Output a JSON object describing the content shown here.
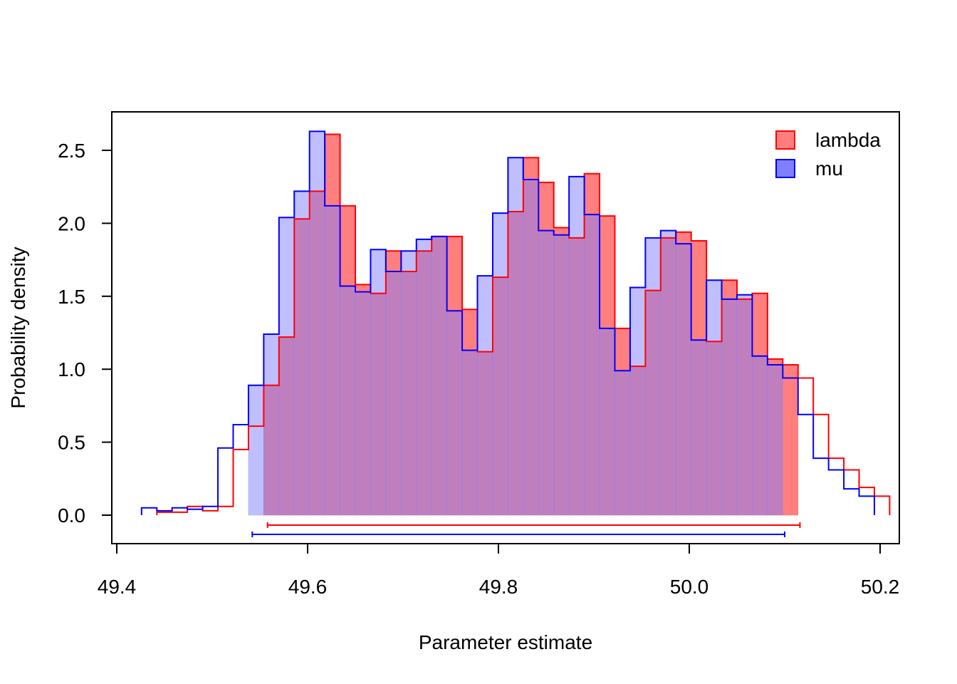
{
  "chart_data": {
    "type": "histogram",
    "title": "",
    "xlabel": "Parameter estimate",
    "ylabel": "Probability density",
    "xlim": [
      49.4,
      50.2
    ],
    "ylim": [
      0.0,
      2.5
    ],
    "x_ticks": [
      "49.4",
      "49.6",
      "49.8",
      "50.0",
      "50.2"
    ],
    "y_ticks": [
      "0.0",
      "0.5",
      "1.0",
      "1.5",
      "2.0",
      "2.5"
    ],
    "legend_position": "top-right",
    "series": [
      {
        "name": "lambda",
        "line_color": "#ff0000",
        "fill_color": "#ff7f7f",
        "bin_start": 49.442,
        "bin_width": 0.016,
        "densities": [
          0.02,
          0.02,
          0.06,
          0.03,
          0.06,
          0.45,
          0.61,
          0.89,
          1.22,
          2.03,
          2.22,
          2.61,
          2.12,
          1.58,
          1.52,
          1.81,
          1.67,
          1.81,
          1.91,
          1.91,
          1.41,
          1.12,
          1.63,
          2.08,
          2.45,
          2.28,
          1.97,
          1.9,
          2.34,
          2.05,
          1.28,
          1.02,
          1.54,
          1.9,
          1.94,
          1.88,
          1.19,
          1.61,
          1.48,
          1.52,
          1.07,
          1.03,
          0.94,
          0.69,
          0.39,
          0.31,
          0.19,
          0.13
        ],
        "hpd_interval": [
          49.558,
          50.116
        ]
      },
      {
        "name": "mu",
        "line_color": "#0000ff",
        "fill_color": "#7f7fff",
        "bin_start": 49.426,
        "bin_width": 0.016,
        "densities": [
          0.05,
          0.03,
          0.05,
          0.04,
          0.06,
          0.46,
          0.62,
          0.89,
          1.24,
          2.04,
          2.22,
          2.63,
          2.12,
          1.57,
          1.53,
          1.82,
          1.67,
          1.81,
          1.89,
          1.91,
          1.4,
          1.13,
          1.64,
          2.07,
          2.45,
          2.3,
          1.95,
          1.92,
          2.32,
          2.06,
          1.28,
          0.99,
          1.56,
          1.9,
          1.95,
          1.86,
          1.2,
          1.61,
          1.48,
          1.51,
          1.09,
          1.03,
          0.94,
          0.69,
          0.39,
          0.31,
          0.18,
          0.13
        ],
        "hpd_interval": [
          49.542,
          50.1
        ]
      }
    ]
  }
}
